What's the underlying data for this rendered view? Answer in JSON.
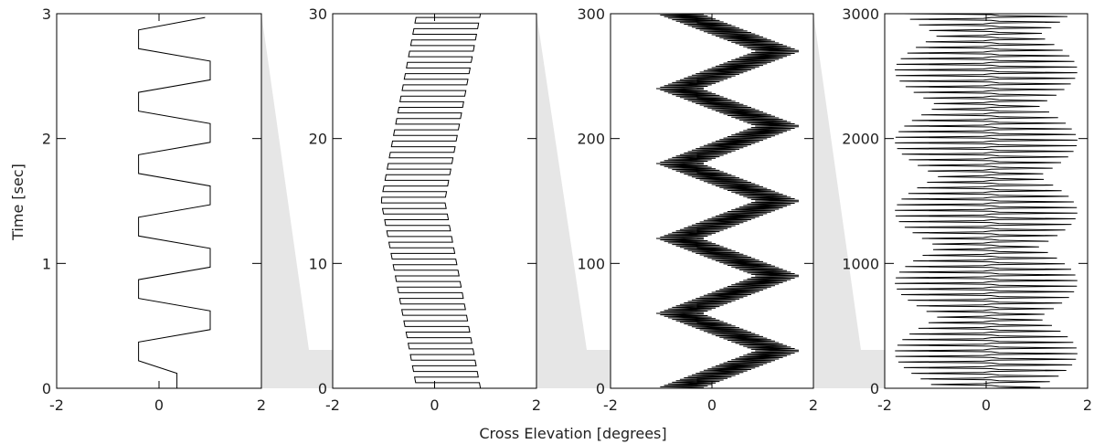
{
  "figure": {
    "shared_xlabel": "Cross Elevation [degrees]",
    "first_ylabel": "Time [sec]"
  },
  "chart_data": [
    {
      "type": "line",
      "xlabel": "",
      "ylabel": "Time [sec]",
      "xlim": [
        -2,
        2
      ],
      "ylim": [
        0,
        3
      ],
      "xticks": [
        "-2",
        "0",
        "2"
      ],
      "yticks": [
        "0",
        "1",
        "2",
        "3"
      ],
      "grid": false,
      "pattern": {
        "style": "step",
        "x_min": -0.4,
        "x_max": 1.0,
        "x_drift_amplitude": 0.0,
        "high_period": 0.5,
        "low_period": 0.5,
        "t_start": 0.0,
        "t_end": 3.0
      },
      "series": [
        {
          "x": [
            0.35,
            0.35,
            -0.4,
            -0.4,
            1.0,
            1.0,
            -0.4,
            -0.4,
            1.0,
            1.0,
            -0.4,
            -0.4,
            1.0,
            1.0,
            -0.4,
            -0.4,
            1.0,
            1.0,
            -0.4,
            -0.4,
            1.0,
            1.0,
            -0.4,
            -0.4,
            0.9
          ],
          "y": [
            0.0,
            0.12,
            0.22,
            0.37,
            0.47,
            0.62,
            0.72,
            0.87,
            0.97,
            1.12,
            1.22,
            1.37,
            1.47,
            1.62,
            1.72,
            1.87,
            1.97,
            2.12,
            2.22,
            2.37,
            2.47,
            2.62,
            2.72,
            2.87,
            2.97
          ]
        }
      ]
    },
    {
      "type": "line",
      "xlabel": "",
      "ylabel": "",
      "xlim": [
        -2,
        2
      ],
      "ylim": [
        0,
        30
      ],
      "xticks": [
        "-2",
        "0",
        "2"
      ],
      "yticks": [
        "0",
        "10",
        "20",
        "30"
      ],
      "grid": false,
      "pattern": {
        "style": "raster",
        "x_min": -0.35,
        "x_max": 0.9,
        "x_drift_amplitude": 0.7,
        "drift_turn_time": 15.0,
        "line_spacing": 0.45,
        "t_start": 0.0,
        "t_end": 30.0
      }
    },
    {
      "type": "line",
      "xlabel": "",
      "ylabel": "",
      "xlim": [
        -2,
        2
      ],
      "ylim": [
        0,
        300
      ],
      "xticks": [
        "-2",
        "0",
        "2"
      ],
      "yticks": [
        "0",
        "100",
        "200",
        "300"
      ],
      "grid": false,
      "pattern": {
        "style": "zigzag",
        "band_width": 0.9,
        "x_left": -1.1,
        "x_right": 1.75,
        "half_period": 30,
        "t_start": 0.0,
        "t_end": 300.0
      }
    },
    {
      "type": "line",
      "xlabel": "",
      "ylabel": "",
      "xlim": [
        -2,
        2
      ],
      "ylim": [
        0,
        3000
      ],
      "xticks": [
        "-2",
        "0",
        "2"
      ],
      "yticks": [
        "0",
        "1000",
        "2000",
        "3000"
      ],
      "grid": false,
      "pattern": {
        "style": "spikes",
        "x_center": 0.1,
        "spike_min": -1.8,
        "spike_max": 1.8,
        "spike_spacing": 45,
        "t_start": 0.0,
        "t_end": 3000.0
      }
    }
  ]
}
